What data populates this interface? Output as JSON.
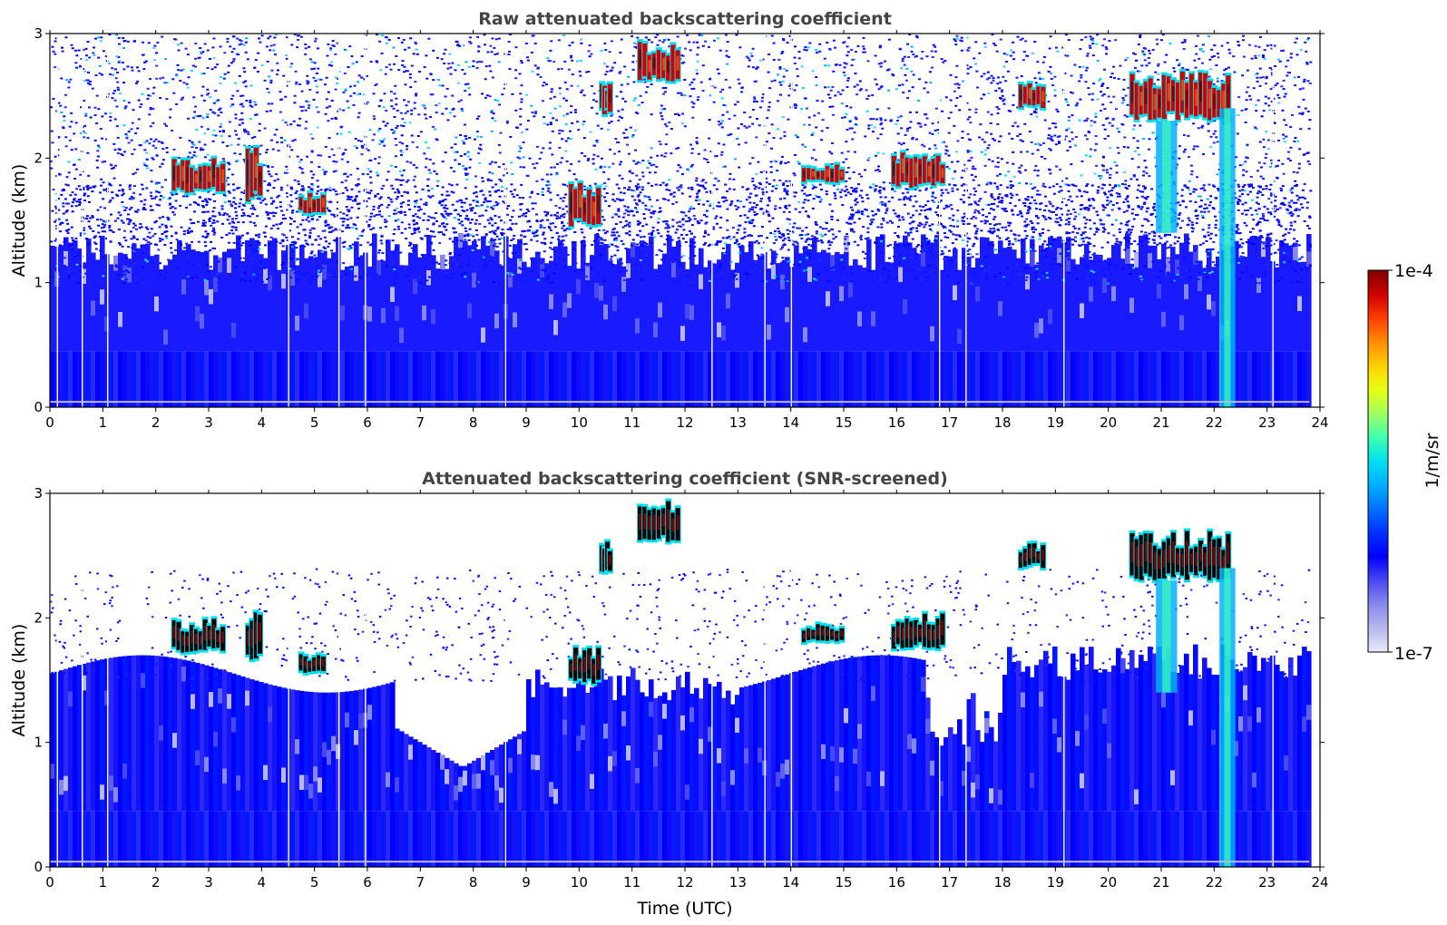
{
  "chart_data": [
    {
      "type": "heatmap",
      "title": "Raw attenuated backscattering coefficient",
      "xlabel": "",
      "ylabel": "Altitude (km)",
      "xlim": [
        0,
        24
      ],
      "ylim": [
        0,
        3
      ],
      "xticks": [
        "0",
        "1",
        "2",
        "3",
        "4",
        "5",
        "6",
        "7",
        "8",
        "9",
        "10",
        "11",
        "12",
        "13",
        "14",
        "15",
        "16",
        "17",
        "18",
        "19",
        "20",
        "21",
        "22",
        "23",
        "24"
      ],
      "yticks": [
        "0",
        "1",
        "2",
        "3"
      ],
      "screened": false,
      "features": [
        {
          "name": "cloud",
          "t_start": 2.3,
          "t_end": 3.3,
          "alt_bottom": 1.72,
          "alt_top": 2.0
        },
        {
          "name": "cloud",
          "t_start": 3.7,
          "t_end": 4.0,
          "alt_bottom": 1.65,
          "alt_top": 2.1
        },
        {
          "name": "cloud",
          "t_start": 4.7,
          "t_end": 5.2,
          "alt_bottom": 1.55,
          "alt_top": 1.72
        },
        {
          "name": "cloud",
          "t_start": 9.8,
          "t_end": 10.4,
          "alt_bottom": 1.45,
          "alt_top": 1.8
        },
        {
          "name": "cloud",
          "t_start": 10.4,
          "t_end": 10.6,
          "alt_bottom": 2.35,
          "alt_top": 2.65
        },
        {
          "name": "cloud",
          "t_start": 11.1,
          "t_end": 11.9,
          "alt_bottom": 2.6,
          "alt_top": 2.95
        },
        {
          "name": "cloud",
          "t_start": 14.2,
          "t_end": 15.0,
          "alt_bottom": 1.8,
          "alt_top": 1.95
        },
        {
          "name": "cloud",
          "t_start": 15.9,
          "t_end": 16.9,
          "alt_bottom": 1.75,
          "alt_top": 2.05
        },
        {
          "name": "cloud",
          "t_start": 18.3,
          "t_end": 18.8,
          "alt_bottom": 2.4,
          "alt_top": 2.6
        },
        {
          "name": "cloud",
          "t_start": 20.4,
          "t_end": 22.3,
          "alt_bottom": 2.3,
          "alt_top": 2.7
        },
        {
          "name": "precip",
          "t_start": 20.9,
          "t_end": 21.3,
          "alt_bottom": 1.4,
          "alt_top": 2.3
        },
        {
          "name": "precip",
          "t_start": 22.1,
          "t_end": 22.4,
          "alt_bottom": 0.0,
          "alt_top": 2.4
        }
      ]
    },
    {
      "type": "heatmap",
      "title": "Attenuated backscattering coefficient (SNR-screened)",
      "xlabel": "Time (UTC)",
      "ylabel": "Altitude (km)",
      "xlim": [
        0,
        24
      ],
      "ylim": [
        0,
        3
      ],
      "xticks": [
        "0",
        "1",
        "2",
        "3",
        "4",
        "5",
        "6",
        "7",
        "8",
        "9",
        "10",
        "11",
        "12",
        "13",
        "14",
        "15",
        "16",
        "17",
        "18",
        "19",
        "20",
        "21",
        "22",
        "23",
        "24"
      ],
      "yticks": [
        "0",
        "1",
        "2",
        "3"
      ],
      "screened": true,
      "features": [
        {
          "name": "cloud",
          "t_start": 2.3,
          "t_end": 3.3,
          "alt_bottom": 1.72,
          "alt_top": 2.0
        },
        {
          "name": "cloud",
          "t_start": 3.7,
          "t_end": 4.0,
          "alt_bottom": 1.65,
          "alt_top": 2.1
        },
        {
          "name": "cloud",
          "t_start": 4.7,
          "t_end": 5.2,
          "alt_bottom": 1.55,
          "alt_top": 1.72
        },
        {
          "name": "cloud",
          "t_start": 9.8,
          "t_end": 10.4,
          "alt_bottom": 1.45,
          "alt_top": 1.8
        },
        {
          "name": "cloud",
          "t_start": 10.4,
          "t_end": 10.6,
          "alt_bottom": 2.35,
          "alt_top": 2.65
        },
        {
          "name": "cloud",
          "t_start": 11.1,
          "t_end": 11.9,
          "alt_bottom": 2.6,
          "alt_top": 2.95
        },
        {
          "name": "cloud",
          "t_start": 14.2,
          "t_end": 15.0,
          "alt_bottom": 1.8,
          "alt_top": 1.95
        },
        {
          "name": "cloud",
          "t_start": 15.9,
          "t_end": 16.9,
          "alt_bottom": 1.75,
          "alt_top": 2.05
        },
        {
          "name": "cloud",
          "t_start": 18.3,
          "t_end": 18.8,
          "alt_bottom": 2.4,
          "alt_top": 2.6
        },
        {
          "name": "cloud",
          "t_start": 20.4,
          "t_end": 22.3,
          "alt_bottom": 2.3,
          "alt_top": 2.7
        },
        {
          "name": "precip",
          "t_start": 20.9,
          "t_end": 21.3,
          "alt_bottom": 1.4,
          "alt_top": 2.3
        },
        {
          "name": "precip",
          "t_start": 22.1,
          "t_end": 22.4,
          "alt_bottom": 0.0,
          "alt_top": 2.4
        }
      ]
    }
  ],
  "colorbar": {
    "label": "1/m/sr",
    "max_label": "1e-4",
    "min_label": "1e-7",
    "scale": "log",
    "colors": [
      "#e8e8f8",
      "#b8b8ee",
      "#8888ec",
      "#4848f0",
      "#0000ff",
      "#0030ff",
      "#0070ff",
      "#00b0ff",
      "#00e0f0",
      "#40ffb0",
      "#a0ff60",
      "#e8ff10",
      "#ffd000",
      "#ff8c00",
      "#ff3c00",
      "#d00000",
      "#800000"
    ]
  }
}
